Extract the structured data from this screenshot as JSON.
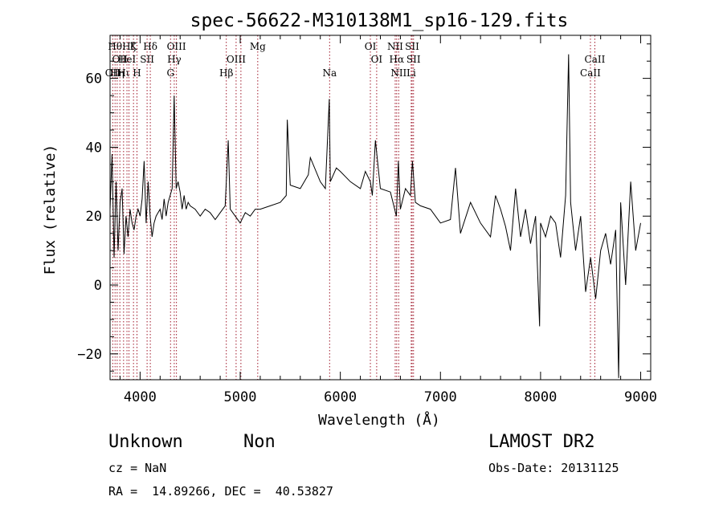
{
  "chart_data": {
    "type": "line",
    "title": "spec-56622-M310138M1_sp16-129.fits",
    "xlabel": "Wavelength (Å)",
    "ylabel": "Flux (relative)",
    "xlim": [
      3700,
      9100
    ],
    "ylim": [
      -27.5,
      72.5
    ],
    "xticks": [
      4000,
      5000,
      6000,
      7000,
      8000,
      9000
    ],
    "yticks": [
      -20,
      0,
      20,
      40,
      60
    ],
    "xtick_labels": [
      "4000",
      "5000",
      "6000",
      "7000",
      "8000",
      "9000"
    ],
    "ytick_labels": [
      "−20",
      "0",
      "20",
      "40",
      "60"
    ],
    "series": [
      {
        "name": "flux",
        "x": [
          3700,
          3720,
          3740,
          3760,
          3780,
          3800,
          3820,
          3840,
          3860,
          3880,
          3900,
          3920,
          3940,
          3960,
          3980,
          4000,
          4020,
          4040,
          4060,
          4080,
          4100,
          4120,
          4140,
          4160,
          4180,
          4200,
          4220,
          4240,
          4260,
          4280,
          4300,
          4320,
          4340,
          4360,
          4380,
          4400,
          4420,
          4440,
          4460,
          4480,
          4500,
          4550,
          4600,
          4650,
          4700,
          4750,
          4800,
          4850,
          4880,
          4900,
          4950,
          5000,
          5050,
          5100,
          5150,
          5200,
          5300,
          5400,
          5460,
          5470,
          5500,
          5600,
          5680,
          5700,
          5800,
          5850,
          5890,
          5900,
          5960,
          6000,
          6100,
          6200,
          6250,
          6300,
          6320,
          6350,
          6400,
          6500,
          6560,
          6580,
          6600,
          6650,
          6700,
          6720,
          6750,
          6800,
          6900,
          7000,
          7100,
          7150,
          7200,
          7300,
          7400,
          7500,
          7550,
          7600,
          7650,
          7700,
          7750,
          7800,
          7850,
          7900,
          7950,
          7990,
          8000,
          8050,
          8100,
          8150,
          8200,
          8250,
          8280,
          8300,
          8350,
          8400,
          8450,
          8500,
          8550,
          8600,
          8650,
          8700,
          8750,
          8780,
          8800,
          8850,
          8900,
          8950,
          9000
        ],
        "y": [
          22,
          38,
          8,
          30,
          10,
          24,
          28,
          9,
          20,
          14,
          22,
          18,
          16,
          20,
          22,
          20,
          25,
          36,
          18,
          30,
          20,
          14,
          18,
          20,
          21,
          22,
          19,
          25,
          20,
          24,
          26,
          28,
          55,
          28,
          30,
          27,
          22,
          26,
          22,
          24,
          23,
          22,
          20,
          22,
          21,
          19,
          21,
          23,
          42,
          22,
          20,
          18,
          21,
          20,
          22,
          22,
          23,
          24,
          26,
          48,
          29,
          28,
          32,
          37,
          30,
          28,
          54,
          30,
          34,
          33,
          30,
          28,
          33,
          30,
          26,
          42,
          28,
          27,
          20,
          36,
          22,
          28,
          26,
          36,
          24,
          23,
          22,
          18,
          19,
          34,
          15,
          24,
          18,
          14,
          26,
          22,
          17,
          10,
          28,
          14,
          22,
          12,
          20,
          -12,
          18,
          14,
          20,
          18,
          8,
          26,
          67,
          24,
          10,
          20,
          -2,
          8,
          -4,
          10,
          15,
          6,
          16,
          -27,
          24,
          0,
          30,
          10,
          18
        ]
      }
    ],
    "lines": [
      {
        "wl": 3727,
        "label": "OII",
        "row": 3
      },
      {
        "wl": 3750,
        "label": "Hθ",
        "row": 1
      },
      {
        "wl": 3771,
        "label": "Hη",
        "row": 3
      },
      {
        "wl": 3798,
        "label": "OII",
        "row": 2
      },
      {
        "wl": 3835,
        "label": "Hι",
        "row": 3
      },
      {
        "wl": 3869,
        "label": "HeI",
        "row": 2
      },
      {
        "wl": 3889,
        "label": "Hζ",
        "row": 1
      },
      {
        "wl": 3934,
        "label": "K",
        "row": 1
      },
      {
        "wl": 3969,
        "label": "H",
        "row": 3
      },
      {
        "wl": 4070,
        "label": "SII",
        "row": 2
      },
      {
        "wl": 4102,
        "label": "Hδ",
        "row": 1
      },
      {
        "wl": 4304,
        "label": "G",
        "row": 3
      },
      {
        "wl": 4341,
        "label": "Hγ",
        "row": 2
      },
      {
        "wl": 4363,
        "label": "OIII",
        "row": 1
      },
      {
        "wl": 4861,
        "label": "Hβ",
        "row": 3
      },
      {
        "wl": 4959,
        "label": "OIII",
        "row": 2
      },
      {
        "wl": 5007,
        "label": "",
        "row": 0
      },
      {
        "wl": 5175,
        "label": "Mg",
        "row": 1
      },
      {
        "wl": 5893,
        "label": "Na",
        "row": 3
      },
      {
        "wl": 6300,
        "label": "OI",
        "row": 1
      },
      {
        "wl": 6363,
        "label": "OI",
        "row": 2
      },
      {
        "wl": 6548,
        "label": "NII",
        "row": 1
      },
      {
        "wl": 6563,
        "label": "Hα",
        "row": 2
      },
      {
        "wl": 6583,
        "label": "NII",
        "row": 3
      },
      {
        "wl": 6708,
        "label": "Li",
        "row": 3
      },
      {
        "wl": 6717,
        "label": "SII",
        "row": 1
      },
      {
        "wl": 6731,
        "label": "SII",
        "row": 2
      },
      {
        "wl": 8498,
        "label": "CaII",
        "row": 3
      },
      {
        "wl": 8542,
        "label": "CaII",
        "row": 2
      }
    ]
  },
  "info": {
    "class": "Unknown",
    "subclass": "Non",
    "survey": "LAMOST DR2",
    "cz": "cz = NaN",
    "obs_date": "Obs-Date: 20131125",
    "radec": "RA =  14.89266, DEC =  40.53827"
  },
  "colors": {
    "axis": "#000000",
    "spectrum": "#000000",
    "line_marker": "#a0182a"
  }
}
